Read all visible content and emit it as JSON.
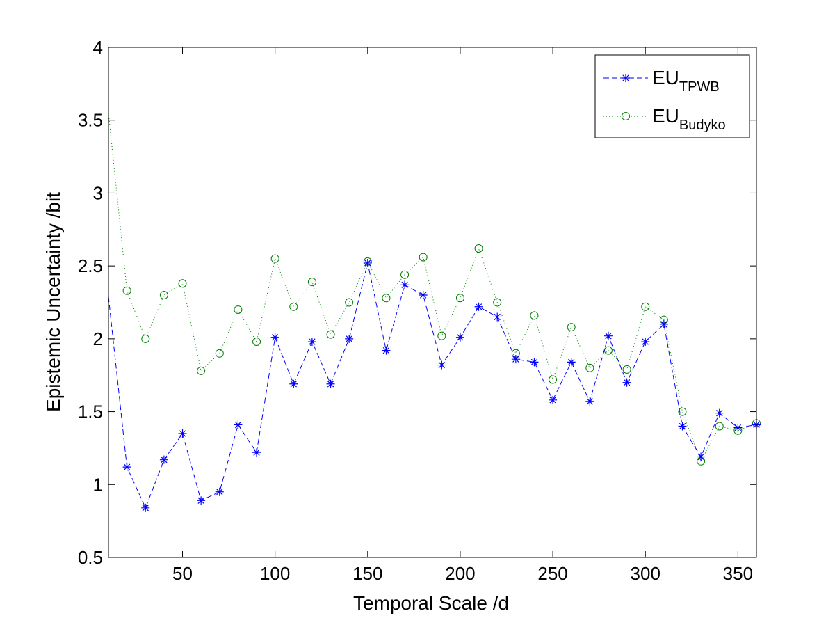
{
  "chart_data": {
    "type": "line",
    "xlabel": "Temporal Scale /d",
    "ylabel": "Epistemic Uncertainty /bit",
    "xlim": [
      10,
      360
    ],
    "ylim": [
      0.5,
      4
    ],
    "x_ticks": [
      50,
      100,
      150,
      200,
      250,
      300,
      350
    ],
    "y_ticks": [
      0.5,
      1,
      1.5,
      2,
      2.5,
      3,
      3.5,
      4
    ],
    "x_tick_labels": [
      "50",
      "100",
      "150",
      "200",
      "250",
      "300",
      "350"
    ],
    "y_tick_labels": [
      "0.5",
      "1",
      "1.5",
      "2",
      "2.5",
      "3",
      "3.5",
      "4"
    ],
    "grid": false,
    "legend_position": "top-right",
    "x": [
      10,
      20,
      30,
      40,
      50,
      60,
      70,
      80,
      90,
      100,
      110,
      120,
      130,
      140,
      150,
      160,
      170,
      180,
      190,
      200,
      210,
      220,
      230,
      240,
      250,
      260,
      270,
      280,
      290,
      300,
      310,
      320,
      330,
      340,
      350,
      360
    ],
    "series": [
      {
        "name_main": "EU",
        "name_sub": "TPWB",
        "color": "#0000ff",
        "marker": "asterisk",
        "line_style": "dashed",
        "values": [
          2.29,
          1.12,
          0.84,
          1.17,
          1.35,
          0.89,
          0.95,
          1.41,
          1.22,
          2.01,
          1.69,
          1.98,
          1.69,
          2.0,
          2.52,
          1.92,
          2.37,
          2.3,
          1.82,
          2.01,
          2.22,
          2.15,
          1.86,
          1.84,
          1.58,
          1.84,
          1.57,
          2.02,
          1.7,
          1.98,
          2.1,
          1.4,
          1.19,
          1.49,
          1.39,
          1.41
        ]
      },
      {
        "name_main": "EU",
        "name_sub": "Budyko",
        "color": "#008000",
        "marker": "circle",
        "line_style": "dotted",
        "values": [
          3.55,
          2.33,
          2.0,
          2.3,
          2.38,
          1.78,
          1.9,
          2.2,
          1.98,
          2.55,
          2.22,
          2.39,
          2.03,
          2.25,
          2.53,
          2.28,
          2.44,
          2.56,
          2.02,
          2.28,
          2.62,
          2.25,
          1.9,
          2.16,
          1.72,
          2.08,
          1.8,
          1.92,
          1.79,
          2.22,
          2.13,
          1.5,
          1.16,
          1.4,
          1.37,
          1.42
        ]
      }
    ]
  }
}
